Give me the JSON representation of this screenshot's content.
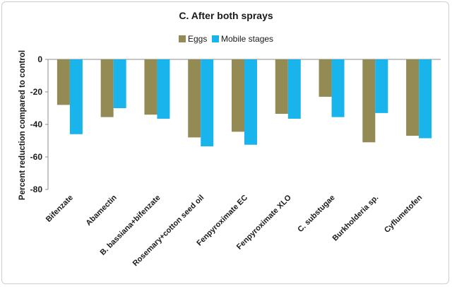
{
  "chart_data": {
    "type": "bar",
    "title": "C. After both sprays",
    "xlabel": "",
    "ylabel": "Percent reduction compared to control",
    "ylim": [
      -80,
      0
    ],
    "yticks": [
      0,
      -20,
      -40,
      -60,
      -80
    ],
    "grid": false,
    "legend_position": "top",
    "categories": [
      "Bifenzate",
      "Abamectin",
      "B. bassiana+bifenzate",
      "Rosemary+cotton seed oil",
      "Fenpyroximate EC",
      "Fenpyroximate XLO",
      "C. substugae",
      "Burkholderia sp.",
      "Cyflumetofen"
    ],
    "series": [
      {
        "name": "Eggs",
        "color": "#948a54",
        "values": [
          -28,
          -35.5,
          -34,
          -48,
          -44.5,
          -33.5,
          -23,
          -51,
          -47
        ]
      },
      {
        "name": "Mobile stages",
        "color": "#1ab4ec",
        "values": [
          -46,
          -30,
          -36.5,
          -53.5,
          -52.5,
          -36.5,
          -35.5,
          -33,
          -48.5
        ]
      }
    ]
  }
}
